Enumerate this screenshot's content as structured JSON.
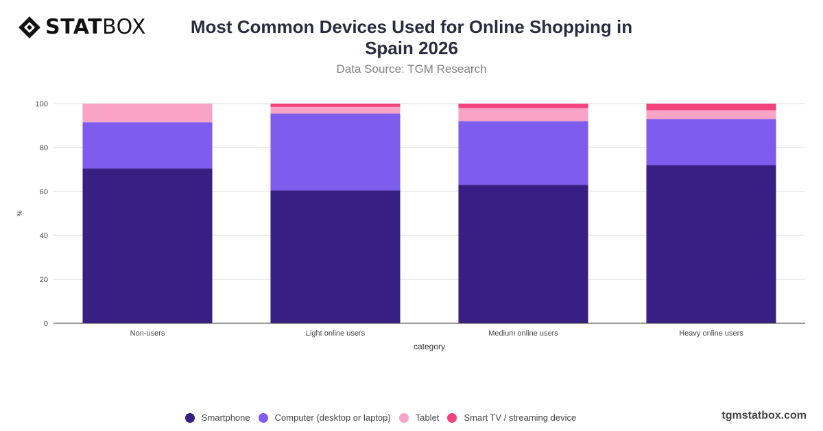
{
  "brand": {
    "logo_bold": "STAT",
    "logo_light": "BOX",
    "watermark": "tgmstatbox.com"
  },
  "header": {
    "title": "Most Common Devices Used for Online Shopping in Spain 2026",
    "subtitle": "Data Source: TGM Research"
  },
  "chart_data": {
    "type": "bar",
    "stacked": true,
    "categories": [
      "Non-users",
      "Light online users",
      "Medium online users",
      "Heavy online users"
    ],
    "series": [
      {
        "name": "Smartphone",
        "color": "#371f83",
        "values": [
          70.5,
          60.5,
          63,
          72
        ]
      },
      {
        "name": "Computer (desktop or laptop)",
        "color": "#7d5cee",
        "values": [
          21,
          35,
          29,
          21
        ]
      },
      {
        "name": "Tablet",
        "color": "#f9a3c6",
        "values": [
          8.5,
          3,
          6,
          4
        ]
      },
      {
        "name": "Smart TV / streaming device",
        "color": "#f2437c",
        "values": [
          0,
          1.5,
          2,
          3
        ]
      }
    ],
    "xlabel": "category",
    "ylabel": "%",
    "ylim": [
      0,
      100
    ],
    "yticks": [
      0,
      20,
      40,
      60,
      80,
      100
    ],
    "grid": true,
    "legend_position": "bottom"
  }
}
